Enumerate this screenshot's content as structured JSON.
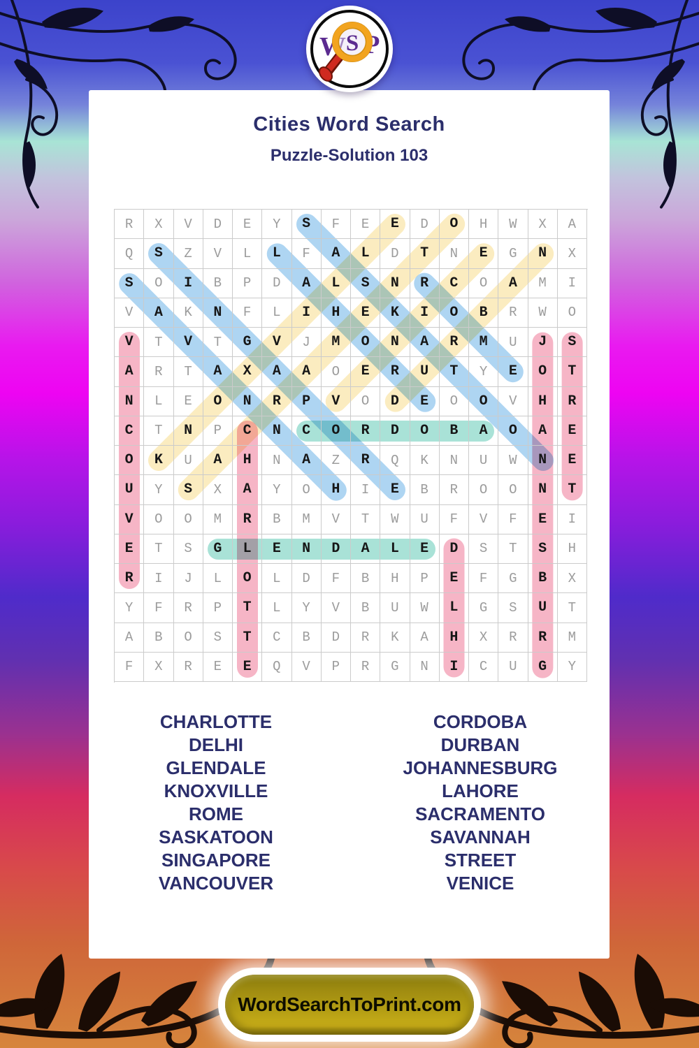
{
  "header": {
    "title": "Cities Word Search",
    "subtitle": "Puzzle-Solution 103"
  },
  "logo": {
    "letters": [
      "W",
      "S",
      "P"
    ],
    "icon": "magnifying-glass"
  },
  "puzzle": {
    "grid_size": 16,
    "rows": [
      "RXVDEYSFEEDOHWXA",
      "QSZVLLFALDTNEGNX",
      "SOIBPDALSNRCOAMI",
      "VAKNFLIHEKIOBRWO",
      "VTVTGVJMONARMUJS",
      "ARTAXAAOERUTYEOT",
      "NLEONRPVODEOOVHR",
      "CTNPCNCORDOBAOAE",
      "OKUAHNAZRQKNUWNE",
      "UYSXAYOHIEBROONT",
      "VOOMRBMVTWUFVFEI",
      "ETSGLENDALEDSTSH",
      "RIJLOLDFBHPEFGBX",
      "YFRPTLYVBUWLGSUT",
      "ABOSTCBDRKAHXRRM",
      "FXREEQVPRGNICUGY"
    ],
    "solutions": [
      {
        "word": "VANCOUVER",
        "start": [
          5,
          1
        ],
        "end": [
          13,
          1
        ],
        "color": "pink"
      },
      {
        "word": "CHARLOTTE",
        "start": [
          8,
          5
        ],
        "end": [
          16,
          5
        ],
        "color": "pink"
      },
      {
        "word": "DELHI",
        "start": [
          12,
          12
        ],
        "end": [
          16,
          12
        ],
        "color": "pink"
      },
      {
        "word": "JOHANNESBURG",
        "start": [
          5,
          15
        ],
        "end": [
          16,
          15
        ],
        "color": "pink"
      },
      {
        "word": "STREET",
        "start": [
          5,
          16
        ],
        "end": [
          10,
          16
        ],
        "color": "pink"
      },
      {
        "word": "CORDOBA",
        "start": [
          8,
          7
        ],
        "end": [
          8,
          13
        ],
        "color": "teal"
      },
      {
        "word": "GLENDALE",
        "start": [
          12,
          4
        ],
        "end": [
          12,
          11
        ],
        "color": "teal"
      },
      {
        "word": "SINGAPORE",
        "start": [
          2,
          2
        ],
        "end": [
          10,
          10
        ],
        "color": "blue"
      },
      {
        "word": "SAVANNAH",
        "start": [
          3,
          1
        ],
        "end": [
          10,
          8
        ],
        "color": "blue"
      },
      {
        "word": "LAHORE",
        "start": [
          2,
          6
        ],
        "end": [
          7,
          11
        ],
        "color": "blue"
      },
      {
        "word": "SASKATOON",
        "start": [
          1,
          7
        ],
        "end": [
          9,
          15
        ],
        "color": "blue"
      },
      {
        "word": "ROME",
        "start": [
          3,
          11
        ],
        "end": [
          6,
          14
        ],
        "color": "blue"
      },
      {
        "word": "KNOXVILLE",
        "start": [
          9,
          2
        ],
        "end": [
          1,
          10
        ],
        "color": "yellow"
      },
      {
        "word": "SACRAMENTO",
        "start": [
          10,
          3
        ],
        "end": [
          1,
          12
        ],
        "color": "yellow"
      },
      {
        "word": "DURBAN",
        "start": [
          7,
          10
        ],
        "end": [
          2,
          15
        ],
        "color": "yellow"
      },
      {
        "word": "VENICE",
        "start": [
          7,
          8
        ],
        "end": [
          2,
          13
        ],
        "color": "yellow"
      }
    ],
    "highlight_colors": {
      "pink": "#f6b5c6",
      "blue": "#aed5f2",
      "yellow": "#fbecc0",
      "teal": "#a9e2d7"
    }
  },
  "word_list": {
    "left": [
      "CHARLOTTE",
      "DELHI",
      "GLENDALE",
      "KNOXVILLE",
      "ROME",
      "SASKATOON",
      "SINGAPORE",
      "VANCOUVER"
    ],
    "right": [
      "CORDOBA",
      "DURBAN",
      "JOHANNESBURG",
      "LAHORE",
      "SACRAMENTO",
      "SAVANNAH",
      "STREET",
      "VENICE"
    ]
  },
  "footer": {
    "site_label": "WordSearchToPrint.com"
  }
}
